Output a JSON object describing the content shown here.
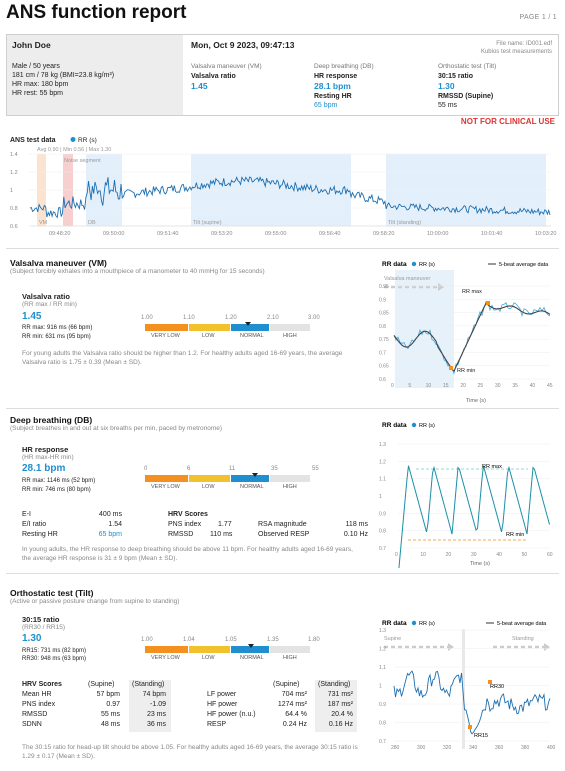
{
  "title": "ANS function report",
  "page_label": "PAGE 1 / 1",
  "patient": {
    "name": "John Doe",
    "age_line": "Male / 50 years",
    "body_line": "181 cm / 78 kg (BMI=23.8 kg/m²)",
    "hr_max": "HR max: 180 bpm",
    "hr_rest": "HR rest: 55 bpm"
  },
  "session": {
    "datetime": "Mon, Oct 9 2023, 09:47:13",
    "file": "File name: ID001.edf",
    "device": "Kubios test measurements"
  },
  "summary": {
    "vm": {
      "heading": "Valsalva maneuver (VM)",
      "label": "Valsalva ratio",
      "value": "1.45"
    },
    "db": {
      "heading": "Deep breathing (DB)",
      "label": "HR response",
      "value": "28.1 bpm",
      "label2": "Resting HR",
      "value2": "65 bpm"
    },
    "tilt": {
      "heading": "Orthostatic test (Tilt)",
      "label": "30:15 ratio",
      "value": "1.30",
      "label2": "RMSSD (Supine)",
      "value2": "55 ms"
    }
  },
  "warning": "NOT FOR CLINICAL USE",
  "ans_chart": {
    "title": "ANS test data",
    "legend": "RR (s)",
    "stats": "Avg 0.90 | Min 0.56 | Max 1.30",
    "yticks": [
      "1.4",
      "1.2",
      "1",
      "0.8",
      "0.6"
    ],
    "xticks": [
      "09:48:20",
      "09:50:00",
      "09:51:40",
      "09:53:20",
      "09:55:00",
      "09:56:40",
      "09:58:20",
      "10:00:00",
      "10:01:40",
      "10:03:20"
    ],
    "noise_label": "Noise segment",
    "seg_vm": "VM",
    "seg_db": "DB",
    "seg_supine": "Tilt (supine)",
    "seg_standing": "Tilt (standing)"
  },
  "vm_section": {
    "title": "Valsalva maneuver (VM)",
    "subtitle": "(Subject forcibly exhales into a mouthpiece of a manometer to 40 mmHg for 15 seconds)",
    "result_label": "Valsalva ratio",
    "result_sub": "(RR max / RR min)",
    "result_value": "1.45",
    "rr_max": "RR max: 916 ms (66 bpm)",
    "rr_min": "RR min: 631 ms (95 bpm)",
    "scale_ticks": [
      "1.00",
      "1.10",
      "1.20",
      "2.10",
      "3.00"
    ],
    "scale_labels": [
      "VERY LOW",
      "LOW",
      "NORMAL",
      "HIGH"
    ],
    "note": "For young adults the Valsalva ratio should be higher than 1.2. For healthy adults aged 16-69 years, the average Valsalva ratio is 1.75 ± 0.39 (Mean ± SD).",
    "chart": {
      "title": "RR data",
      "legend1": "RR (s)",
      "legend2": "5-beat average data",
      "region_label": "Valsalva maneuver",
      "max_label": "RR max",
      "min_label": "RR min",
      "yticks": [
        "0.95",
        "0.9",
        "0.85",
        "0.8",
        "0.75",
        "0.7",
        "0.65",
        "0.6"
      ],
      "xticks": [
        "0",
        "5",
        "10",
        "15",
        "20",
        "25",
        "30",
        "35",
        "40",
        "45"
      ],
      "xlabel": "Time (s)"
    }
  },
  "db_section": {
    "title": "Deep breathing (DB)",
    "subtitle": "(Subject breathes in and out at six breaths per min, paced by metronome)",
    "result_label": "HR response",
    "result_sub": "(HR max-HR min)",
    "result_value": "28.1 bpm",
    "rr_max": "RR max: 1146 ms (52 bpm)",
    "rr_min": "RR min: 746 ms (80 bpm)",
    "scale_ticks": [
      "0",
      "6",
      "11",
      "35",
      "55"
    ],
    "scale_labels": [
      "VERY LOW",
      "LOW",
      "NORMAL",
      "HIGH"
    ],
    "metrics": [
      {
        "label": "E-I",
        "value": "400 ms"
      },
      {
        "label": "E/I ratio",
        "value": "1.54"
      },
      {
        "label": "Resting HR",
        "value": "65 bpm"
      }
    ],
    "hrv_title": "HRV Scores",
    "hrv": [
      {
        "label": "PNS index",
        "value": "1.77",
        "label2": "RSA magnitude",
        "value2": "118 ms"
      },
      {
        "label": "RMSSD",
        "value": "110 ms",
        "label2": "Observed RESP",
        "value2": "0.10 Hz"
      }
    ],
    "note": "In young adults, the HR response to deep breathing should be above 11 bpm. For healthy adults aged 16-69 years, the average HR response is 31 ± 9 bpm (Mean ± SD).",
    "chart": {
      "title": "RR data",
      "legend1": "RR (s)",
      "max_label": "RR max",
      "min_label": "RR min",
      "yticks": [
        "1.3",
        "1.2",
        "1.1",
        "1",
        "0.9",
        "0.8",
        "0.7"
      ],
      "xticks": [
        "0",
        "10",
        "20",
        "30",
        "40",
        "50",
        "60"
      ],
      "xlabel": "Time (s)"
    }
  },
  "tilt_section": {
    "title": "Orthostatic test (Tilt)",
    "subtitle": "(Active or passive posture change from supine to standing)",
    "result_label": "30:15 ratio",
    "result_sub": "(RR30 / RR15)",
    "result_value": "1.30",
    "rr15": "RR15: 731 ms (82 bpm)",
    "rr30": "RR30: 948 ms (63 bpm)",
    "scale_ticks": [
      "1.00",
      "1.04",
      "1.05",
      "1.35",
      "1.80"
    ],
    "scale_labels": [
      "VERY LOW",
      "LOW",
      "NORMAL",
      "HIGH"
    ],
    "hrv_title": "HRV Scores",
    "col_supine": "(Supine)",
    "col_standing": "(Standing)",
    "left_rows": [
      {
        "label": "Mean HR",
        "supine": "57 bpm",
        "standing": "74 bpm"
      },
      {
        "label": "PNS index",
        "supine": "0.97",
        "standing": "-1.09"
      },
      {
        "label": "RMSSD",
        "supine": "55 ms",
        "standing": "23 ms"
      },
      {
        "label": "SDNN",
        "supine": "48 ms",
        "standing": "36 ms"
      }
    ],
    "right_rows": [
      {
        "label": "LF power",
        "supine": "704 ms²",
        "standing": "731 ms²"
      },
      {
        "label": "HF power",
        "supine": "1274 ms²",
        "standing": "187 ms²"
      },
      {
        "label": "HF power (n.u.)",
        "supine": "64.4 %",
        "standing": "20.4 %"
      },
      {
        "label": "RESP",
        "supine": "0.24 Hz",
        "standing": "0.16 Hz"
      }
    ],
    "note": "The 30:15 ratio for head-up tilt should be above 1.05. For healthy adults aged 16-69 years, the average 30:15 ratio is 1.29 ± 0.17 (Mean ± SD).",
    "chart": {
      "title": "RR data",
      "legend1": "RR (s)",
      "legend2": "5-beat average data",
      "region1": "Supine",
      "region2": "Standing",
      "rr15_label": "RR15",
      "rr30_label": "RR30",
      "yticks": [
        "1.3",
        "1.2",
        "1.1",
        "1",
        "0.9",
        "0.8",
        "0.7"
      ],
      "xticks": [
        "280",
        "300",
        "320",
        "340",
        "360",
        "380",
        "400"
      ],
      "xlabel": "Time (s)"
    }
  },
  "colors": {
    "accent": "#1f8fcf",
    "orange": "#f39020",
    "yellow": "#f2c12e",
    "normal": "#1f8fcf",
    "high": "#e3e3e3",
    "warning": "#dd3333"
  }
}
